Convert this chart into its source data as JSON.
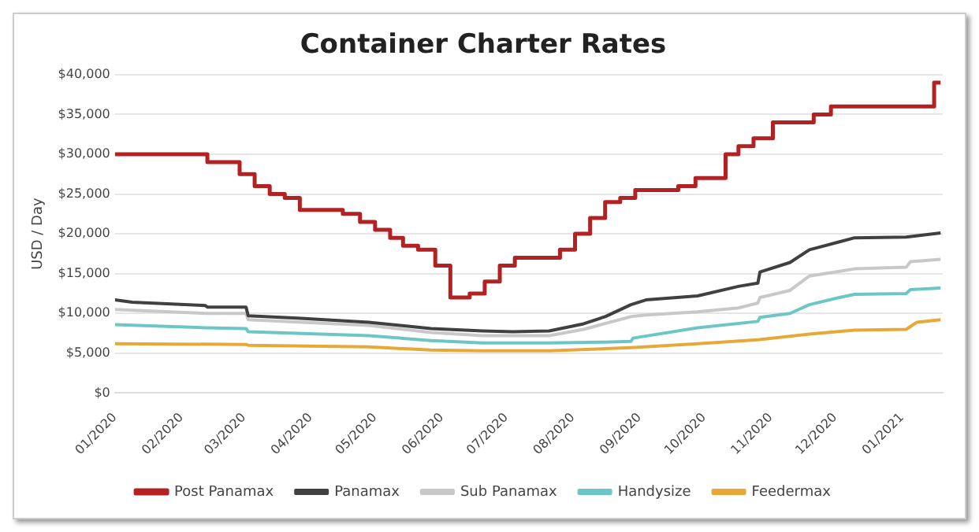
{
  "chart_data": {
    "type": "line",
    "title": "Container Charter Rates",
    "ylabel": "USD / Day",
    "xlim": [
      "2020-01-01",
      "2021-01-20"
    ],
    "xticks": [
      {
        "value": "2020-01-01",
        "label": "01/2020"
      },
      {
        "value": "2020-02-01",
        "label": "02/2020"
      },
      {
        "value": "2020-03-01",
        "label": "03/2020"
      },
      {
        "value": "2020-04-01",
        "label": "04/2020"
      },
      {
        "value": "2020-05-01",
        "label": "05/2020"
      },
      {
        "value": "2020-06-01",
        "label": "06/2020"
      },
      {
        "value": "2020-07-01",
        "label": "07/2020"
      },
      {
        "value": "2020-08-01",
        "label": "08/2020"
      },
      {
        "value": "2020-09-01",
        "label": "09/2020"
      },
      {
        "value": "2020-10-01",
        "label": "10/2020"
      },
      {
        "value": "2020-11-01",
        "label": "11/2020"
      },
      {
        "value": "2020-12-01",
        "label": "12/2020"
      },
      {
        "value": "2021-01-01",
        "label": "01/2021"
      }
    ],
    "ylim": [
      0,
      40000
    ],
    "yticks": [
      {
        "value": 0,
        "label": "$0"
      },
      {
        "value": 5000,
        "label": "$5,000"
      },
      {
        "value": 10000,
        "label": "$10,000"
      },
      {
        "value": 15000,
        "label": "$15,000"
      },
      {
        "value": 20000,
        "label": "$20,000"
      },
      {
        "value": 25000,
        "label": "$25,000"
      },
      {
        "value": 30000,
        "label": "$30,000"
      },
      {
        "value": 35000,
        "label": "$35,000"
      },
      {
        "value": 40000,
        "label": "$40,000"
      }
    ],
    "grid": "y",
    "legend": "bottom",
    "marker": "none",
    "line_style": "solid",
    "series": [
      {
        "name": "Post Panamax",
        "type": "step",
        "color": "#b22222",
        "x": [
          "2020-01-01",
          "2020-02-13",
          "2020-02-28",
          "2020-03-06",
          "2020-03-13",
          "2020-03-20",
          "2020-03-27",
          "2020-04-16",
          "2020-04-24",
          "2020-05-01",
          "2020-05-08",
          "2020-05-14",
          "2020-05-21",
          "2020-05-29",
          "2020-06-05",
          "2020-06-14",
          "2020-06-21",
          "2020-06-28",
          "2020-07-05",
          "2020-07-26",
          "2020-08-02",
          "2020-08-09",
          "2020-08-16",
          "2020-08-23",
          "2020-08-30",
          "2020-09-19",
          "2020-09-27",
          "2020-10-11",
          "2020-10-17",
          "2020-10-24",
          "2020-11-02",
          "2020-11-21",
          "2020-11-29",
          "2021-01-16",
          "2021-01-19"
        ],
        "values": [
          30000,
          29000,
          27500,
          26000,
          25000,
          24500,
          23000,
          22500,
          21500,
          20500,
          19500,
          18500,
          18000,
          16000,
          12000,
          12500,
          14000,
          16000,
          17000,
          18000,
          20000,
          22000,
          24000,
          24500,
          25500,
          26000,
          27000,
          30000,
          31000,
          32000,
          34000,
          35000,
          36000,
          39000,
          39000
        ]
      },
      {
        "name": "Panamax",
        "color": "#404040",
        "x": [
          "2020-01-01",
          "2020-01-09",
          "2020-02-12",
          "2020-02-13",
          "2020-03-02",
          "2020-03-03",
          "2020-03-26",
          "2020-04-28",
          "2020-05-27",
          "2020-06-20",
          "2020-07-04",
          "2020-07-21",
          "2020-08-06",
          "2020-08-16",
          "2020-08-28",
          "2020-09-04",
          "2020-09-28",
          "2020-10-17",
          "2020-10-26",
          "2020-10-27",
          "2020-11-10",
          "2020-11-19",
          "2020-12-03",
          "2020-12-10",
          "2021-01-03",
          "2021-01-19"
        ],
        "values": [
          11700,
          11400,
          11000,
          10800,
          10800,
          9700,
          9400,
          8900,
          8100,
          7800,
          7700,
          7800,
          8700,
          9600,
          11100,
          11700,
          12200,
          13400,
          13800,
          15200,
          16400,
          18000,
          19000,
          19500,
          19600,
          20100
        ]
      },
      {
        "name": "Sub Panamax",
        "color": "#c8c8c8",
        "x": [
          "2020-01-01",
          "2020-02-12",
          "2020-03-02",
          "2020-03-03",
          "2020-04-28",
          "2020-05-27",
          "2020-06-20",
          "2020-07-21",
          "2020-08-06",
          "2020-08-28",
          "2020-09-04",
          "2020-09-28",
          "2020-10-17",
          "2020-10-26",
          "2020-10-27",
          "2020-11-10",
          "2020-11-19",
          "2020-12-03",
          "2020-12-10",
          "2021-01-03",
          "2021-01-05",
          "2021-01-19"
        ],
        "values": [
          10500,
          10000,
          10000,
          9200,
          8500,
          7600,
          7200,
          7200,
          8000,
          9600,
          9800,
          10200,
          10700,
          11300,
          12000,
          12900,
          14700,
          15300,
          15600,
          15800,
          16500,
          16800
        ]
      },
      {
        "name": "Handysize",
        "color": "#6cc6c6",
        "x": [
          "2020-01-01",
          "2020-02-12",
          "2020-03-02",
          "2020-03-03",
          "2020-04-28",
          "2020-05-27",
          "2020-06-20",
          "2020-07-21",
          "2020-08-16",
          "2020-08-28",
          "2020-08-29",
          "2020-09-28",
          "2020-10-26",
          "2020-10-27",
          "2020-11-10",
          "2020-11-19",
          "2020-12-03",
          "2020-12-10",
          "2021-01-03",
          "2021-01-05",
          "2021-01-19"
        ],
        "values": [
          8600,
          8200,
          8100,
          7700,
          7200,
          6600,
          6300,
          6300,
          6400,
          6500,
          6900,
          8200,
          9000,
          9500,
          10000,
          11100,
          12000,
          12400,
          12500,
          13000,
          13200
        ]
      },
      {
        "name": "Feedermax",
        "color": "#e8a838",
        "x": [
          "2020-01-01",
          "2020-03-02",
          "2020-03-03",
          "2020-04-28",
          "2020-05-27",
          "2020-06-20",
          "2020-07-21",
          "2020-08-28",
          "2020-09-28",
          "2020-10-26",
          "2020-11-19",
          "2020-12-10",
          "2021-01-03",
          "2021-01-08",
          "2021-01-19"
        ],
        "values": [
          6200,
          6100,
          6000,
          5800,
          5400,
          5300,
          5300,
          5700,
          6200,
          6700,
          7400,
          7900,
          8000,
          8900,
          9200
        ]
      }
    ]
  }
}
